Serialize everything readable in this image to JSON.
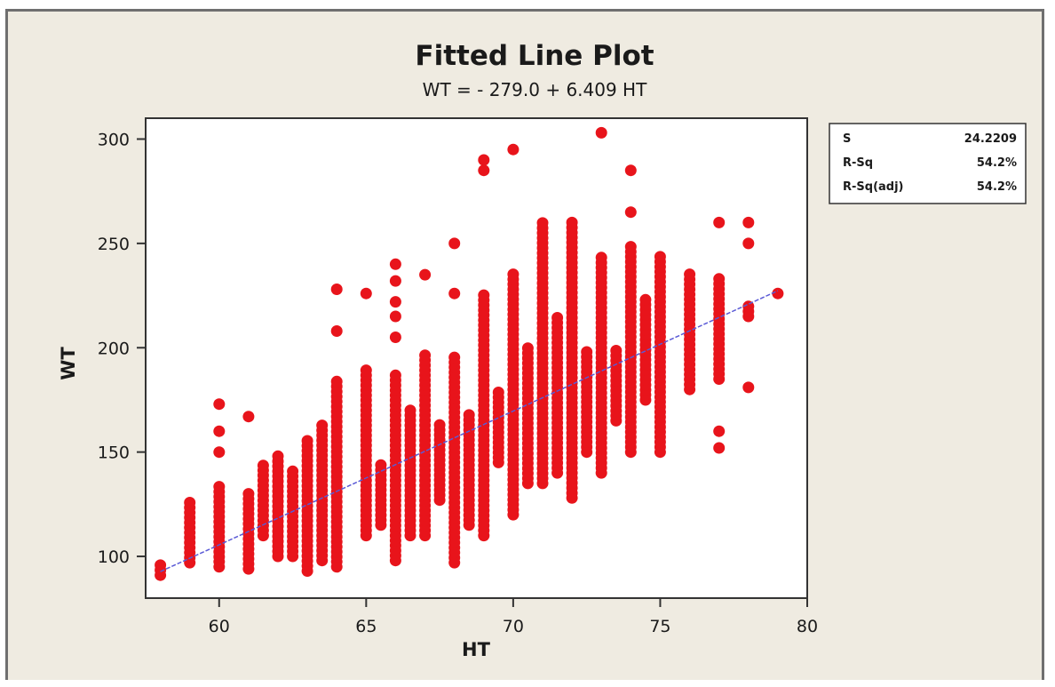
{
  "chart_data": {
    "type": "scatter",
    "title": "Fitted Line Plot",
    "subtitle": "WT = - 279.0 + 6.409 HT",
    "xlabel": "HT",
    "ylabel": "WT",
    "xlim": [
      57.5,
      80
    ],
    "ylim": [
      80,
      310
    ],
    "xticks": [
      60,
      65,
      70,
      75,
      80
    ],
    "yticks": [
      100,
      150,
      200,
      250,
      300
    ],
    "grid": false,
    "point_color": "#e8141b",
    "line_color": "#5a5ad6",
    "fit_line": {
      "intercept": -279.0,
      "slope": 6.409,
      "x_range": [
        58,
        79
      ]
    },
    "stats_box": [
      {
        "label": "S",
        "value": "24.2209"
      },
      {
        "label": "R-Sq",
        "value": "54.2%"
      },
      {
        "label": "R-Sq(adj)",
        "value": "54.2%"
      }
    ],
    "columns": [
      {
        "x": 58,
        "ranges": [
          [
            91,
            97
          ]
        ]
      },
      {
        "x": 59,
        "ranges": [
          [
            97,
            126
          ]
        ]
      },
      {
        "x": 60,
        "ranges": [
          [
            95,
            134
          ]
        ],
        "extra": [
          150,
          160,
          173
        ]
      },
      {
        "x": 61,
        "ranges": [
          [
            94,
            132
          ]
        ],
        "extra": [
          167
        ]
      },
      {
        "x": 61.5,
        "ranges": [
          [
            110,
            145
          ]
        ]
      },
      {
        "x": 62,
        "ranges": [
          [
            100,
            148
          ]
        ]
      },
      {
        "x": 62.5,
        "ranges": [
          [
            100,
            142
          ]
        ]
      },
      {
        "x": 63,
        "ranges": [
          [
            93,
            157
          ]
        ]
      },
      {
        "x": 63.5,
        "ranges": [
          [
            98,
            165
          ]
        ]
      },
      {
        "x": 64,
        "ranges": [
          [
            95,
            186
          ]
        ],
        "extra": [
          208,
          228
        ]
      },
      {
        "x": 65,
        "ranges": [
          [
            110,
            190
          ]
        ],
        "extra": [
          226
        ]
      },
      {
        "x": 65.5,
        "ranges": [
          [
            115,
            145
          ]
        ]
      },
      {
        "x": 66,
        "ranges": [
          [
            98,
            187
          ]
        ],
        "extra": [
          205,
          215,
          222,
          232,
          240
        ]
      },
      {
        "x": 66.5,
        "ranges": [
          [
            110,
            170
          ]
        ]
      },
      {
        "x": 67,
        "ranges": [
          [
            110,
            197
          ]
        ],
        "extra": [
          235
        ]
      },
      {
        "x": 67.5,
        "ranges": [
          [
            127,
            165
          ]
        ]
      },
      {
        "x": 68,
        "ranges": [
          [
            97,
            197
          ]
        ],
        "extra": [
          226,
          250
        ]
      },
      {
        "x": 68.5,
        "ranges": [
          [
            115,
            170
          ]
        ]
      },
      {
        "x": 69,
        "ranges": [
          [
            110,
            226
          ]
        ],
        "extra": [
          285,
          290
        ]
      },
      {
        "x": 69.5,
        "ranges": [
          [
            145,
            180
          ]
        ]
      },
      {
        "x": 70,
        "ranges": [
          [
            120,
            236
          ]
        ],
        "extra": [
          295
        ]
      },
      {
        "x": 70.5,
        "ranges": [
          [
            135,
            200
          ]
        ]
      },
      {
        "x": 71,
        "ranges": [
          [
            135,
            260
          ]
        ]
      },
      {
        "x": 71.5,
        "ranges": [
          [
            140,
            215
          ]
        ]
      },
      {
        "x": 72,
        "ranges": [
          [
            128,
            260
          ]
        ]
      },
      {
        "x": 72.5,
        "ranges": [
          [
            150,
            200
          ]
        ]
      },
      {
        "x": 73,
        "ranges": [
          [
            140,
            245
          ]
        ],
        "extra": [
          303
        ]
      },
      {
        "x": 73.5,
        "ranges": [
          [
            165,
            200
          ]
        ]
      },
      {
        "x": 74,
        "ranges": [
          [
            150,
            250
          ]
        ],
        "extra": [
          265,
          285
        ]
      },
      {
        "x": 74.5,
        "ranges": [
          [
            175,
            225
          ]
        ]
      },
      {
        "x": 75,
        "ranges": [
          [
            150,
            245
          ]
        ]
      },
      {
        "x": 76,
        "ranges": [
          [
            180,
            237
          ]
        ]
      },
      {
        "x": 77,
        "ranges": [
          [
            185,
            235
          ]
        ],
        "extra": [
          152,
          160,
          260
        ]
      },
      {
        "x": 78,
        "ranges": [
          [
            215,
            222
          ]
        ],
        "extra": [
          181,
          250,
          260
        ]
      },
      {
        "x": 79,
        "ranges": [
          [
            226,
            226
          ]
        ]
      }
    ]
  }
}
